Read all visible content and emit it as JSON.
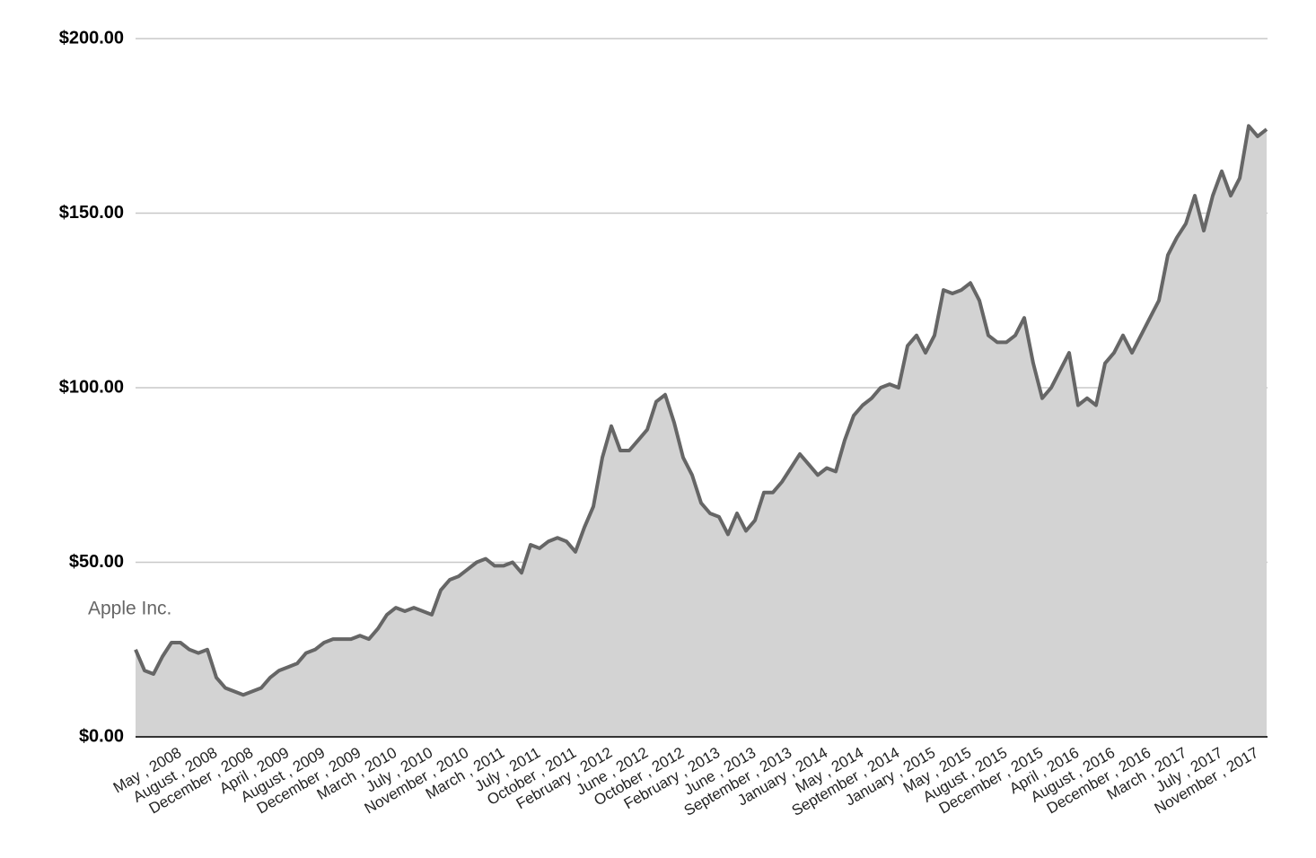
{
  "chart_data": {
    "type": "area",
    "categories": [
      null,
      null,
      null,
      null,
      null,
      "May , 2008",
      null,
      null,
      null,
      "August , 2008",
      null,
      null,
      null,
      "December , 2008",
      null,
      null,
      null,
      "April , 2009",
      null,
      null,
      null,
      "August , 2009",
      null,
      null,
      null,
      "December , 2009",
      null,
      null,
      null,
      "March , 2010",
      null,
      null,
      null,
      "July , 2010",
      null,
      null,
      null,
      "November , 2010",
      null,
      null,
      null,
      "March , 2011",
      null,
      null,
      null,
      "July , 2011",
      null,
      null,
      null,
      "October , 2011",
      null,
      null,
      null,
      "February , 2012",
      null,
      null,
      null,
      "June , 2012",
      null,
      null,
      null,
      "October , 2012",
      null,
      null,
      null,
      "February , 2013",
      null,
      null,
      null,
      "June , 2013",
      null,
      null,
      null,
      "September , 2013",
      null,
      null,
      null,
      "January , 2014",
      null,
      null,
      null,
      "May , 2014",
      null,
      null,
      null,
      "September , 2014",
      null,
      null,
      null,
      "January , 2015",
      null,
      null,
      null,
      "May , 2015",
      null,
      null,
      null,
      "August , 2015",
      null,
      null,
      null,
      "December , 2015",
      null,
      null,
      null,
      "April , 2016",
      null,
      null,
      null,
      "August , 2016",
      null,
      null,
      null,
      "December , 2016",
      null,
      null,
      null,
      "March , 2017",
      null,
      null,
      null,
      "July , 2017",
      null,
      null,
      null,
      "November , 2017",
      null
    ],
    "series": [
      {
        "name": "Apple Inc.",
        "color": "#666666",
        "fill": "#d3d3d3",
        "values": [
          25,
          19,
          18,
          23,
          27,
          27,
          25,
          24,
          25,
          17,
          14,
          13,
          12,
          13,
          14,
          17,
          19,
          20,
          21,
          24,
          25,
          27,
          28,
          28,
          28,
          29,
          28,
          31,
          35,
          37,
          36,
          37,
          36,
          35,
          42,
          45,
          46,
          48,
          50,
          51,
          49,
          49,
          50,
          47,
          55,
          54,
          56,
          57,
          56,
          53,
          60,
          66,
          80,
          89,
          82,
          82,
          85,
          88,
          96,
          98,
          90,
          80,
          75,
          67,
          64,
          63,
          58,
          64,
          59,
          62,
          70,
          70,
          73,
          77,
          81,
          78,
          75,
          77,
          76,
          85,
          92,
          95,
          97,
          100,
          101,
          100,
          112,
          115,
          110,
          115,
          128,
          127,
          128,
          130,
          125,
          115,
          113,
          113,
          115,
          120,
          107,
          97,
          100,
          105,
          110,
          95,
          97,
          95,
          107,
          110,
          115,
          110,
          115,
          120,
          125,
          138,
          143,
          147,
          155,
          145,
          155,
          162,
          155,
          160,
          175,
          172,
          174
        ]
      }
    ],
    "ylim": [
      0,
      200
    ],
    "yticks": [
      {
        "value": 0,
        "label": "$0.00"
      },
      {
        "value": 50,
        "label": "$50.00"
      },
      {
        "value": 100,
        "label": "$100.00"
      },
      {
        "value": 150,
        "label": "$150.00"
      },
      {
        "value": 200,
        "label": "$200.00"
      }
    ],
    "grid": true
  }
}
